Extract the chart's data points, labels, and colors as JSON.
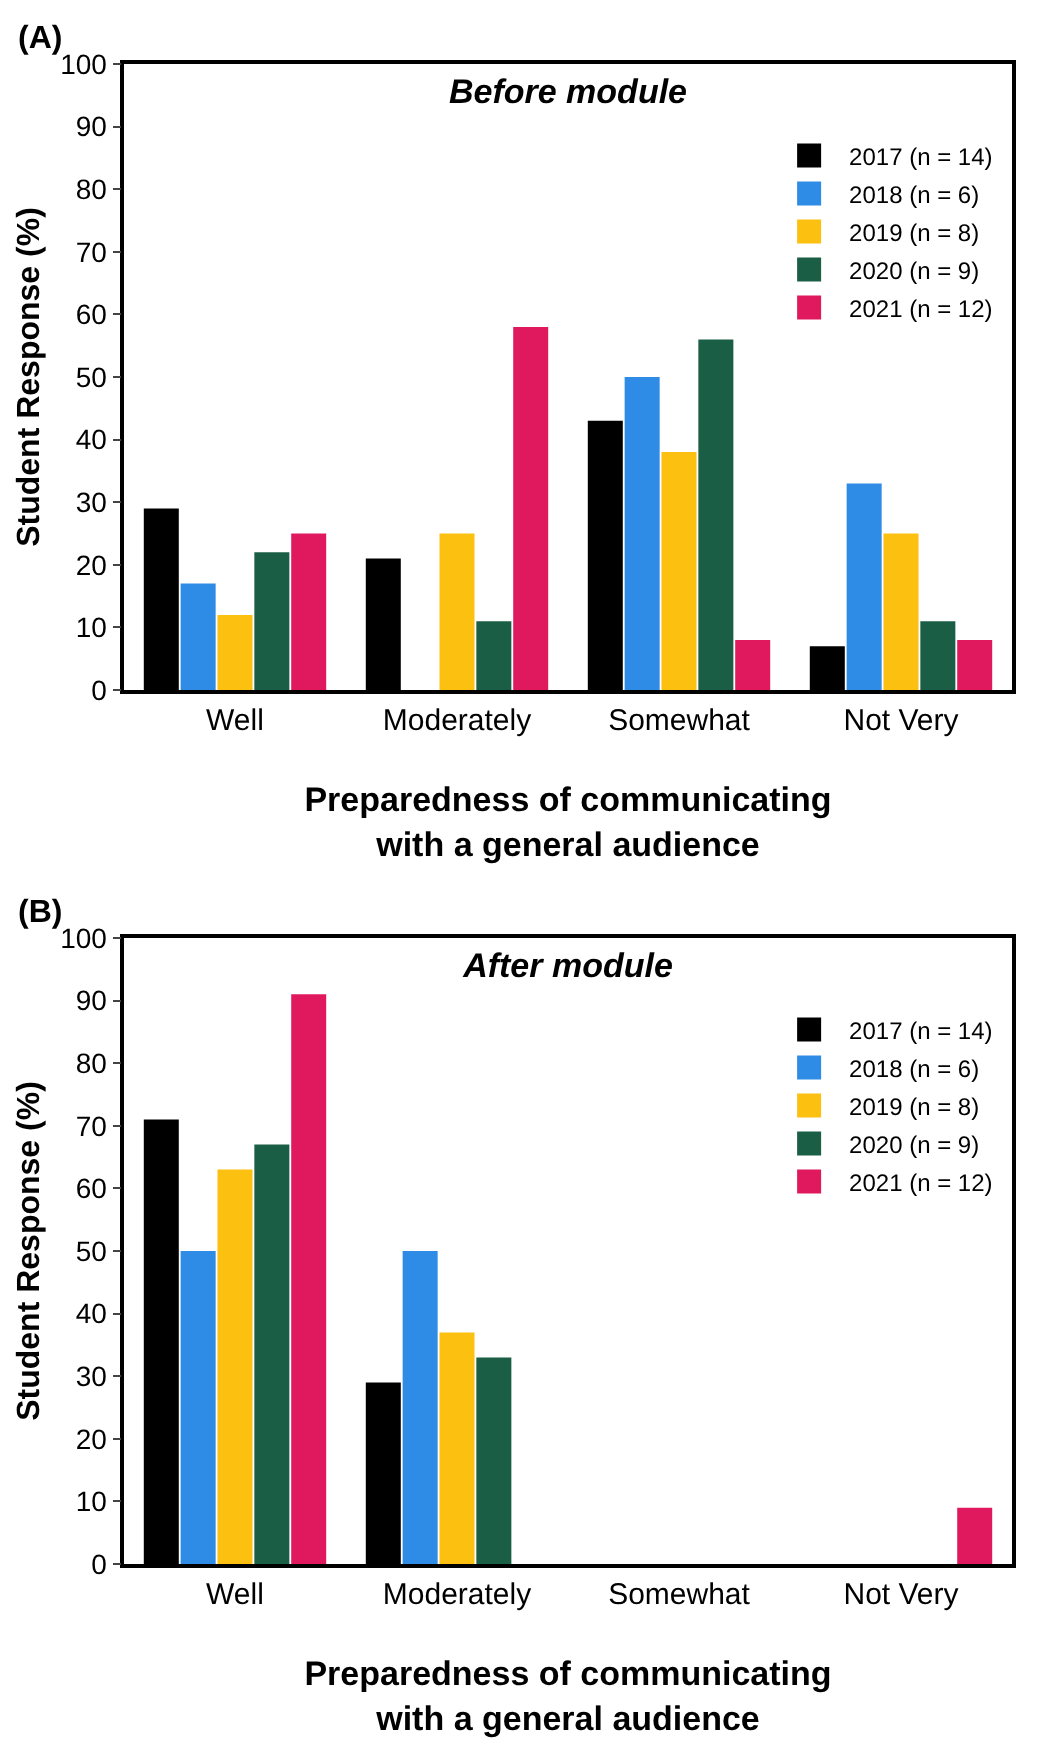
{
  "chart_data": [
    {
      "type": "bar",
      "title": "Before module",
      "xlabel": "Preparedness of communicating\nwith a general audience",
      "ylabel": "Student Response (%)",
      "annotations": [
        "(A)"
      ],
      "categories": [
        "Well",
        "Moderately",
        "Somewhat",
        "Not Very"
      ],
      "series": [
        {
          "name": "2017 (n = 14)",
          "color": "#000000",
          "values": [
            29,
            21,
            43,
            7
          ]
        },
        {
          "name": "2018 (n = 6)",
          "color": "#2e8be6",
          "values": [
            17,
            0,
            50,
            33
          ]
        },
        {
          "name": "2019 (n = 8)",
          "color": "#fcc010",
          "values": [
            12,
            25,
            38,
            25
          ]
        },
        {
          "name": "2020 (n = 9)",
          "color": "#1a5e45",
          "values": [
            22,
            11,
            56,
            11
          ]
        },
        {
          "name": "2021 (n = 12)",
          "color": "#e0195f",
          "values": [
            25,
            58,
            8,
            8
          ]
        }
      ],
      "ylim": [
        0,
        100
      ],
      "yticks": [
        0,
        10,
        20,
        30,
        40,
        50,
        60,
        70,
        80,
        90,
        100
      ],
      "grid": false,
      "legend": "top right"
    },
    {
      "type": "bar",
      "title": "After module",
      "xlabel": "Preparedness of communicating\nwith a general audience",
      "ylabel": "Student Response (%)",
      "annotations": [
        "(B)"
      ],
      "categories": [
        "Well",
        "Moderately",
        "Somewhat",
        "Not Very"
      ],
      "series": [
        {
          "name": "2017 (n = 14)",
          "color": "#000000",
          "values": [
            71,
            29,
            0,
            0
          ]
        },
        {
          "name": "2018 (n = 6)",
          "color": "#2e8be6",
          "values": [
            50,
            50,
            0,
            0
          ]
        },
        {
          "name": "2019 (n = 8)",
          "color": "#fcc010",
          "values": [
            63,
            37,
            0,
            0
          ]
        },
        {
          "name": "2020 (n = 9)",
          "color": "#1a5e45",
          "values": [
            67,
            33,
            0,
            0
          ]
        },
        {
          "name": "2021 (n = 12)",
          "color": "#e0195f",
          "values": [
            91,
            0,
            0,
            9
          ]
        }
      ],
      "ylim": [
        0,
        100
      ],
      "yticks": [
        0,
        10,
        20,
        30,
        40,
        50,
        60,
        70,
        80,
        90,
        100
      ],
      "grid": false,
      "legend": "top right"
    }
  ]
}
